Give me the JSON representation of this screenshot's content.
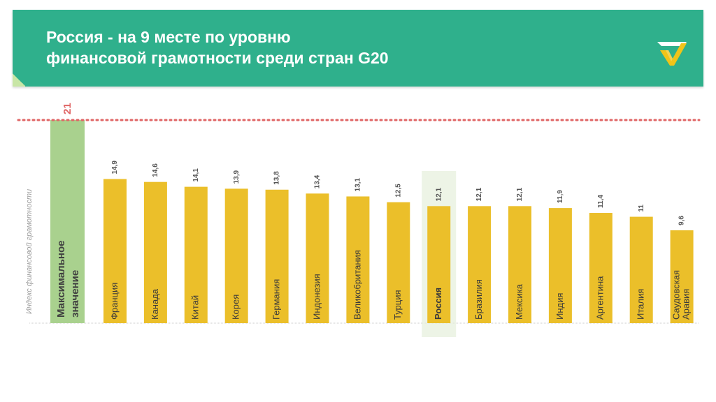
{
  "title": {
    "line1": "Россия - на 9 месте по уровню",
    "line2": "финансовой грамотности среди стран G20"
  },
  "colors": {
    "banner": "#2fb08c",
    "bar": "#ebbf2a",
    "max_bar": "#a9d18e",
    "max_line": "#e06666",
    "highlight_box": "#e6f0dc"
  },
  "logo_icon": "checkmark-logo-icon",
  "chart_data": {
    "type": "bar",
    "ylabel": "Индекс финансовой грамотности",
    "ylim": [
      0,
      21
    ],
    "max_value": 21,
    "max_label": "Максимальное значение",
    "highlight": "Россия",
    "categories": [
      "Франция",
      "Канада",
      "Китай",
      "Корея",
      "Германия",
      "Индонезия",
      "Великобритания",
      "Турция",
      "Россия",
      "Бразилия",
      "Мексика",
      "Индия",
      "Аргентина",
      "Италия",
      "Саудовская Аравия"
    ],
    "value_labels": [
      "14,9",
      "14,6",
      "14,1",
      "13,9",
      "13,8",
      "13,4",
      "13,1",
      "12,5",
      "12,1",
      "12,1",
      "12,1",
      "11,9",
      "11,4",
      "11",
      "9,6"
    ],
    "values": [
      14.9,
      14.6,
      14.1,
      13.9,
      13.8,
      13.4,
      13.1,
      12.5,
      12.1,
      12.1,
      12.1,
      11.9,
      11.4,
      11,
      9.6
    ]
  }
}
